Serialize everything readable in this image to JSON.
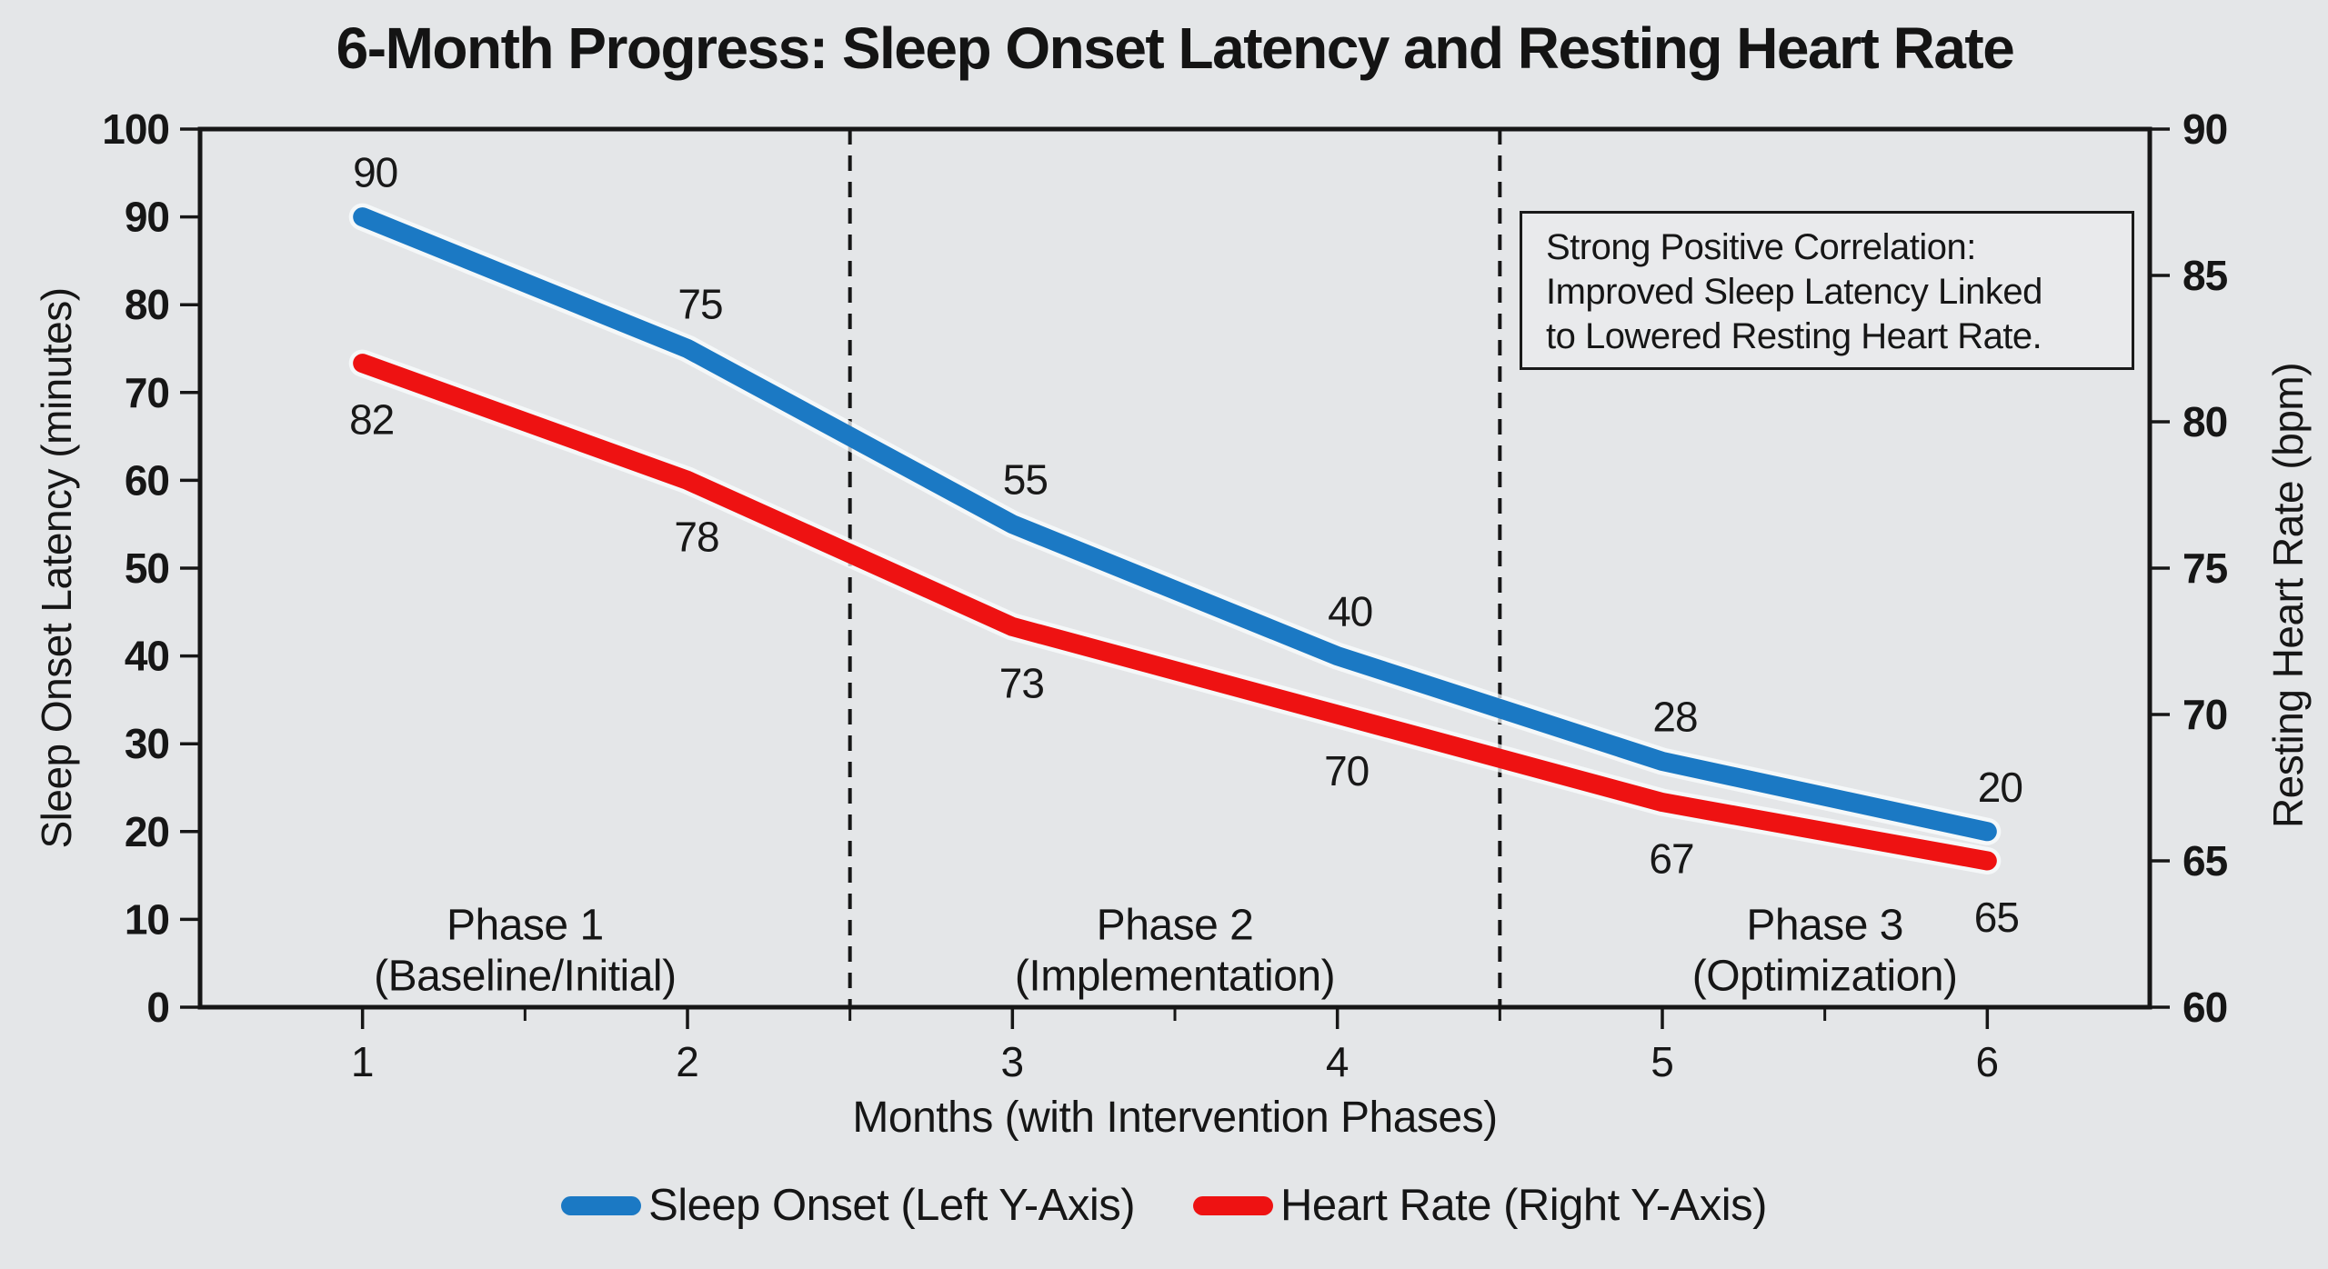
{
  "figure": {
    "background": "#e4e6e8",
    "ink_color": "#161616"
  },
  "chart_data": {
    "type": "line",
    "title": "6-Month Progress: Sleep Onset Latency and Resting Heart Rate",
    "xlabel": "Months (with Intervention Phases)",
    "x": [
      1,
      2,
      3,
      4,
      5,
      6
    ],
    "x_tick_labels": [
      "1",
      "2",
      "3",
      "4",
      "5",
      "6"
    ],
    "xlim": [
      0.5,
      6.5
    ],
    "x_minor_tick_step": 0.5,
    "grid": false,
    "left_axis": {
      "label": "Sleep Onset Latency (minutes)",
      "range": [
        0,
        100
      ],
      "tick_step": 10,
      "tick_labels": [
        "0",
        "10",
        "20",
        "30",
        "40",
        "50",
        "60",
        "70",
        "80",
        "90",
        "100"
      ]
    },
    "right_axis": {
      "label": "Resting Heart Rate (bpm)",
      "range": [
        60,
        90
      ],
      "tick_step": 5,
      "tick_labels": [
        "60",
        "65",
        "70",
        "75",
        "80",
        "85",
        "90"
      ]
    },
    "series": [
      {
        "name": "Sleep Onset (Left Y-Axis)",
        "axis": "left",
        "color": "#1b79c4",
        "values": [
          90,
          75,
          55,
          40,
          28,
          20
        ]
      },
      {
        "name": "Heart Rate (Right Y-Axis)",
        "axis": "right",
        "color": "#ee1212",
        "values": [
          82,
          78,
          73,
          70,
          67,
          65
        ]
      }
    ],
    "phase_dividers": [
      2.5,
      4.5
    ],
    "phases": [
      {
        "line1": "Phase 1",
        "line2": "(Baseline/Initial)"
      },
      {
        "line1": "Phase 2",
        "line2": "(Implementation)"
      },
      {
        "line1": "Phase 3",
        "line2": "(Optimization)"
      }
    ],
    "annotation": {
      "lines": [
        "Strong Positive Correlation:",
        "Improved Sleep Latency Linked",
        "to Lowered Resting Heart Rate."
      ]
    },
    "legend": [
      {
        "label": "Sleep Onset (Left Y-Axis)",
        "color": "#1b79c4"
      },
      {
        "label": "Heart Rate (Right Y-Axis)",
        "color": "#ee1212"
      }
    ],
    "legend_position": "bottom-center"
  }
}
